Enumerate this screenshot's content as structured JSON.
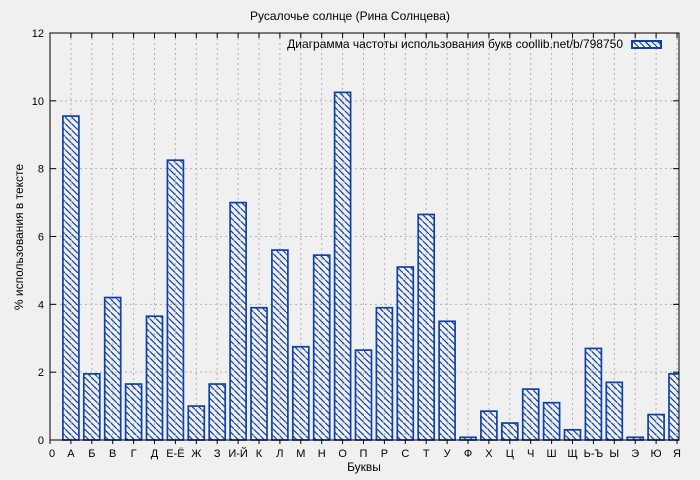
{
  "window": {
    "background": "#f0f0f0"
  },
  "colors": {
    "bar_blue": "#0f42a8",
    "grid_gray": "#b0b0b0",
    "axis_black": "#000000",
    "background": "#f0f0f0",
    "text": "#000000"
  },
  "chart_data": {
    "type": "bar",
    "title": "Русалочье солнце (Рина Солнцева)",
    "legend": "Диаграмма частоты использования букв coollib.net/b/798750",
    "legend_position": "top-right",
    "xlabel": "Буквы",
    "ylabel": "% использования в тексте",
    "x_origin_label": "0",
    "categories": [
      "А",
      "Б",
      "В",
      "Г",
      "Д",
      "Е-Ё",
      "Ж",
      "З",
      "И-Й",
      "К",
      "Л",
      "М",
      "Н",
      "О",
      "П",
      "Р",
      "С",
      "Т",
      "У",
      "Ф",
      "Х",
      "Ц",
      "Ч",
      "Ш",
      "Щ",
      "Ь-Ъ",
      "Ы",
      "Э",
      "Ю",
      "Я"
    ],
    "values": [
      9.55,
      1.95,
      4.2,
      1.65,
      3.65,
      8.25,
      1.0,
      1.65,
      7.0,
      3.9,
      5.6,
      2.75,
      5.45,
      10.25,
      2.65,
      3.9,
      5.1,
      6.65,
      3.5,
      0.08,
      0.85,
      0.5,
      1.5,
      1.1,
      0.3,
      2.7,
      1.7,
      0.08,
      0.75,
      1.95
    ],
    "ylim": [
      0,
      12
    ],
    "yticks": [
      0,
      2,
      4,
      6,
      8,
      10,
      12
    ],
    "grid": true,
    "bar_style": "blue diagonal hatch on light background"
  }
}
